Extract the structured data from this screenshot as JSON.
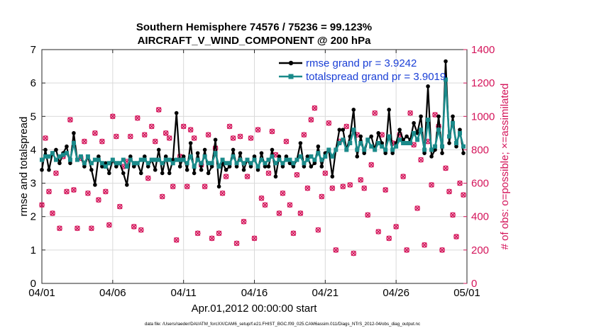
{
  "chart_data": {
    "type": "line",
    "title_line1": "Southern Hemisphere 74576 / 75236 = 99.123%",
    "title_line2": "AIRCRAFT_V_WIND_COMPONENT @ 200 hPa",
    "xlabel": "Apr.01,2012 00:00:00 start",
    "ylabel_left": "rmse and totalspread",
    "ylabel_right": "# of obs: o=possible; ×=assimilated",
    "footer": "data file: /Users/raeder/DAI/ATM_forcXX/CAM6_setup/f.e21.FHIST_BGC.f09_025.CAM6assim.011/Diags_NTrS_2012-04/obs_diag_output.nc",
    "xlim": [
      0,
      30
    ],
    "ylim_left": [
      0,
      7
    ],
    "ylim_right": [
      0,
      1400
    ],
    "x_ticks": [
      0,
      5,
      10,
      15,
      20,
      25,
      30
    ],
    "x_tick_labels": [
      "04/01",
      "04/06",
      "04/11",
      "04/16",
      "04/21",
      "04/26",
      "05/01"
    ],
    "y_left_ticks": [
      0,
      1,
      2,
      3,
      4,
      5,
      6,
      7
    ],
    "y_right_ticks": [
      0,
      200,
      400,
      600,
      800,
      1000,
      1200,
      1400
    ],
    "colors": {
      "rmse": "#000000",
      "spread": "#1a8a8a",
      "obs": "#d4145a",
      "legend_text": "#1a3fd6"
    },
    "series": [
      {
        "name": "rmse grand pr = 3.9242",
        "x": [
          0.0,
          0.25,
          0.5,
          0.75,
          1.0,
          1.25,
          1.5,
          1.75,
          2.0,
          2.25,
          2.5,
          2.75,
          3.0,
          3.25,
          3.5,
          3.75,
          4.0,
          4.25,
          4.5,
          4.75,
          5.0,
          5.25,
          5.5,
          5.75,
          6.0,
          6.25,
          6.5,
          6.75,
          7.0,
          7.25,
          7.5,
          7.75,
          8.0,
          8.25,
          8.5,
          8.75,
          9.0,
          9.25,
          9.5,
          9.75,
          10.0,
          10.25,
          10.5,
          10.75,
          11.0,
          11.25,
          11.5,
          11.75,
          12.0,
          12.25,
          12.5,
          12.75,
          13.0,
          13.25,
          13.5,
          13.75,
          14.0,
          14.25,
          14.5,
          14.75,
          15.0,
          15.25,
          15.5,
          15.75,
          16.0,
          16.25,
          16.5,
          16.75,
          17.0,
          17.25,
          17.5,
          17.75,
          18.0,
          18.25,
          18.5,
          18.75,
          19.0,
          19.25,
          19.5,
          19.75,
          20.0,
          20.25,
          20.5,
          20.75,
          21.0,
          21.25,
          21.5,
          21.75,
          22.0,
          22.25,
          22.5,
          22.75,
          23.0,
          23.25,
          23.5,
          23.75,
          24.0,
          24.25,
          24.5,
          24.75,
          25.0,
          25.25,
          25.5,
          25.75,
          26.0,
          26.25,
          26.5,
          26.75,
          27.0,
          27.25,
          27.5,
          27.75,
          28.0,
          28.25,
          28.5,
          28.75,
          29.0,
          29.25,
          29.5,
          29.75
        ],
        "values": [
          3.4,
          4.0,
          3.4,
          3.9,
          4.0,
          3.6,
          3.9,
          4.1,
          3.6,
          4.5,
          3.7,
          3.8,
          3.5,
          3.8,
          3.4,
          2.95,
          3.8,
          3.5,
          3.6,
          3.3,
          3.7,
          3.5,
          3.6,
          3.3,
          2.95,
          3.8,
          3.5,
          3.6,
          3.3,
          3.8,
          3.5,
          3.7,
          3.4,
          4.0,
          3.3,
          3.8,
          3.3,
          3.7,
          5.1,
          3.5,
          3.8,
          3.4,
          4.2,
          3.3,
          3.9,
          3.4,
          4.0,
          3.3,
          3.5,
          4.3,
          2.9,
          3.6,
          3.4,
          3.5,
          4.0,
          3.5,
          3.9,
          3.4,
          3.7,
          3.5,
          3.8,
          3.4,
          3.9,
          3.5,
          3.5,
          4.0,
          3.2,
          3.8,
          3.5,
          3.8,
          3.6,
          3.5,
          3.7,
          4.2,
          3.5,
          3.8,
          3.5,
          3.6,
          4.1,
          3.5,
          3.9,
          4.0,
          3.2,
          4.0,
          4.6,
          4.6,
          4.0,
          4.4,
          5.2,
          3.8,
          4.4,
          3.9,
          4.3,
          4.4,
          4.0,
          4.5,
          4.2,
          3.9,
          5.2,
          3.9,
          4.2,
          4.6,
          4.3,
          4.4,
          4.3,
          4.8,
          4.5,
          5.0,
          3.9,
          5.9,
          3.8,
          4.0,
          5.0,
          3.9,
          6.65,
          4.2,
          5.0,
          4.1,
          4.6,
          3.9
        ],
        "color": "#000000"
      },
      {
        "name": "totalspread grand pr = 3.9019",
        "x": [
          0.0,
          0.25,
          0.5,
          0.75,
          1.0,
          1.25,
          1.5,
          1.75,
          2.0,
          2.25,
          2.5,
          2.75,
          3.0,
          3.25,
          3.5,
          3.75,
          4.0,
          4.25,
          4.5,
          4.75,
          5.0,
          5.25,
          5.5,
          5.75,
          6.0,
          6.25,
          6.5,
          6.75,
          7.0,
          7.25,
          7.5,
          7.75,
          8.0,
          8.25,
          8.5,
          8.75,
          9.0,
          9.25,
          9.5,
          9.75,
          10.0,
          10.25,
          10.5,
          10.75,
          11.0,
          11.25,
          11.5,
          11.75,
          12.0,
          12.25,
          12.5,
          12.75,
          13.0,
          13.25,
          13.5,
          13.75,
          14.0,
          14.25,
          14.5,
          14.75,
          15.0,
          15.25,
          15.5,
          15.75,
          16.0,
          16.25,
          16.5,
          16.75,
          17.0,
          17.25,
          17.5,
          17.75,
          18.0,
          18.25,
          18.5,
          18.75,
          19.0,
          19.25,
          19.5,
          19.75,
          20.0,
          20.25,
          20.5,
          20.75,
          21.0,
          21.25,
          21.5,
          21.75,
          22.0,
          22.25,
          22.5,
          22.75,
          23.0,
          23.25,
          23.5,
          23.75,
          24.0,
          24.25,
          24.5,
          24.75,
          25.0,
          25.25,
          25.5,
          25.75,
          26.0,
          26.25,
          26.5,
          26.75,
          27.0,
          27.25,
          27.5,
          27.75,
          28.0,
          28.25,
          28.5,
          28.75,
          29.0,
          29.25,
          29.5,
          29.75
        ],
        "values": [
          3.7,
          3.8,
          3.8,
          3.9,
          3.7,
          3.8,
          3.85,
          3.9,
          3.7,
          4.2,
          3.7,
          3.8,
          3.6,
          3.8,
          3.6,
          3.7,
          3.7,
          3.6,
          3.5,
          3.6,
          3.7,
          3.6,
          3.6,
          3.7,
          3.5,
          3.7,
          3.6,
          3.6,
          3.7,
          3.7,
          3.6,
          3.7,
          3.7,
          3.7,
          3.6,
          3.7,
          3.7,
          3.6,
          3.7,
          3.7,
          3.7,
          3.6,
          3.8,
          3.5,
          3.7,
          3.6,
          3.8,
          3.6,
          3.6,
          3.9,
          3.5,
          3.7,
          3.6,
          3.6,
          3.8,
          3.6,
          3.7,
          3.6,
          3.7,
          3.6,
          3.7,
          3.5,
          3.7,
          3.6,
          3.7,
          3.8,
          3.6,
          3.7,
          3.6,
          3.7,
          3.7,
          3.6,
          3.7,
          3.8,
          3.6,
          3.7,
          3.8,
          3.7,
          3.9,
          3.7,
          3.8,
          4.0,
          3.8,
          4.0,
          4.2,
          4.3,
          4.0,
          4.2,
          4.6,
          4.0,
          4.2,
          4.0,
          4.3,
          4.1,
          4.0,
          4.2,
          4.1,
          4.0,
          4.4,
          4.0,
          4.1,
          4.3,
          4.2,
          4.2,
          4.2,
          4.5,
          4.3,
          4.6,
          4.0,
          4.9,
          4.0,
          4.1,
          4.6,
          4.1,
          6.1,
          4.4,
          4.8,
          4.2,
          4.5,
          4.1
        ],
        "color": "#1a8a8a"
      },
      {
        "name": "obs possible / assimilated",
        "axis": "right",
        "x": [
          0.0,
          0.25,
          0.5,
          0.75,
          1.0,
          1.25,
          1.5,
          1.75,
          2.0,
          2.25,
          2.5,
          2.75,
          3.0,
          3.25,
          3.5,
          3.75,
          4.0,
          4.25,
          4.5,
          4.75,
          5.0,
          5.25,
          5.5,
          5.75,
          6.0,
          6.25,
          6.5,
          6.75,
          7.0,
          7.25,
          7.5,
          7.75,
          8.0,
          8.25,
          8.5,
          8.75,
          9.0,
          9.25,
          9.5,
          9.75,
          10.0,
          10.25,
          10.5,
          10.75,
          11.0,
          11.25,
          11.5,
          11.75,
          12.0,
          12.25,
          12.5,
          12.75,
          13.0,
          13.25,
          13.5,
          13.75,
          14.0,
          14.25,
          14.5,
          14.75,
          15.0,
          15.25,
          15.5,
          15.75,
          16.0,
          16.25,
          16.5,
          16.75,
          17.0,
          17.25,
          17.5,
          17.75,
          18.0,
          18.25,
          18.5,
          18.75,
          19.0,
          19.25,
          19.5,
          19.75,
          20.0,
          20.25,
          20.5,
          20.75,
          21.0,
          21.25,
          21.5,
          21.75,
          22.0,
          22.25,
          22.5,
          22.75,
          23.0,
          23.25,
          23.5,
          23.75,
          24.0,
          24.25,
          24.5,
          24.75,
          25.0,
          25.25,
          25.5,
          25.75,
          26.0,
          26.25,
          26.5,
          26.75,
          27.0,
          27.25,
          27.5,
          27.75,
          28.0,
          28.25,
          28.5,
          28.75,
          29.0,
          29.25,
          29.5,
          29.75
        ],
        "values": [
          470,
          870,
          550,
          420,
          660,
          330,
          760,
          550,
          980,
          560,
          330,
          750,
          850,
          540,
          330,
          900,
          500,
          850,
          550,
          350,
          1000,
          880,
          460,
          700,
          730,
          880,
          340,
          990,
          320,
          890,
          630,
          940,
          850,
          1040,
          520,
          900,
          870,
          580,
          260,
          760,
          940,
          580,
          920,
          870,
          300,
          710,
          580,
          890,
          270,
          810,
          300,
          540,
          640,
          940,
          870,
          240,
          880,
          370,
          640,
          870,
          270,
          920,
          510,
          470,
          660,
          910,
          770,
          420,
          540,
          850,
          470,
          300,
          650,
          420,
          890,
          570,
          980,
          1050,
          320,
          520,
          660,
          960,
          570,
          200,
          850,
          580,
          940,
          590,
          180,
          890,
          620,
          570,
          410,
          710,
          1020,
          310,
          890,
          560,
          270,
          840,
          340,
          890,
          640,
          200,
          1020,
          830,
          450,
          740,
          230,
          850,
          590,
          1010,
          940,
          200,
          690,
          550,
          410,
          280,
          600,
          530
        ],
        "color": "#d4145a"
      }
    ]
  }
}
